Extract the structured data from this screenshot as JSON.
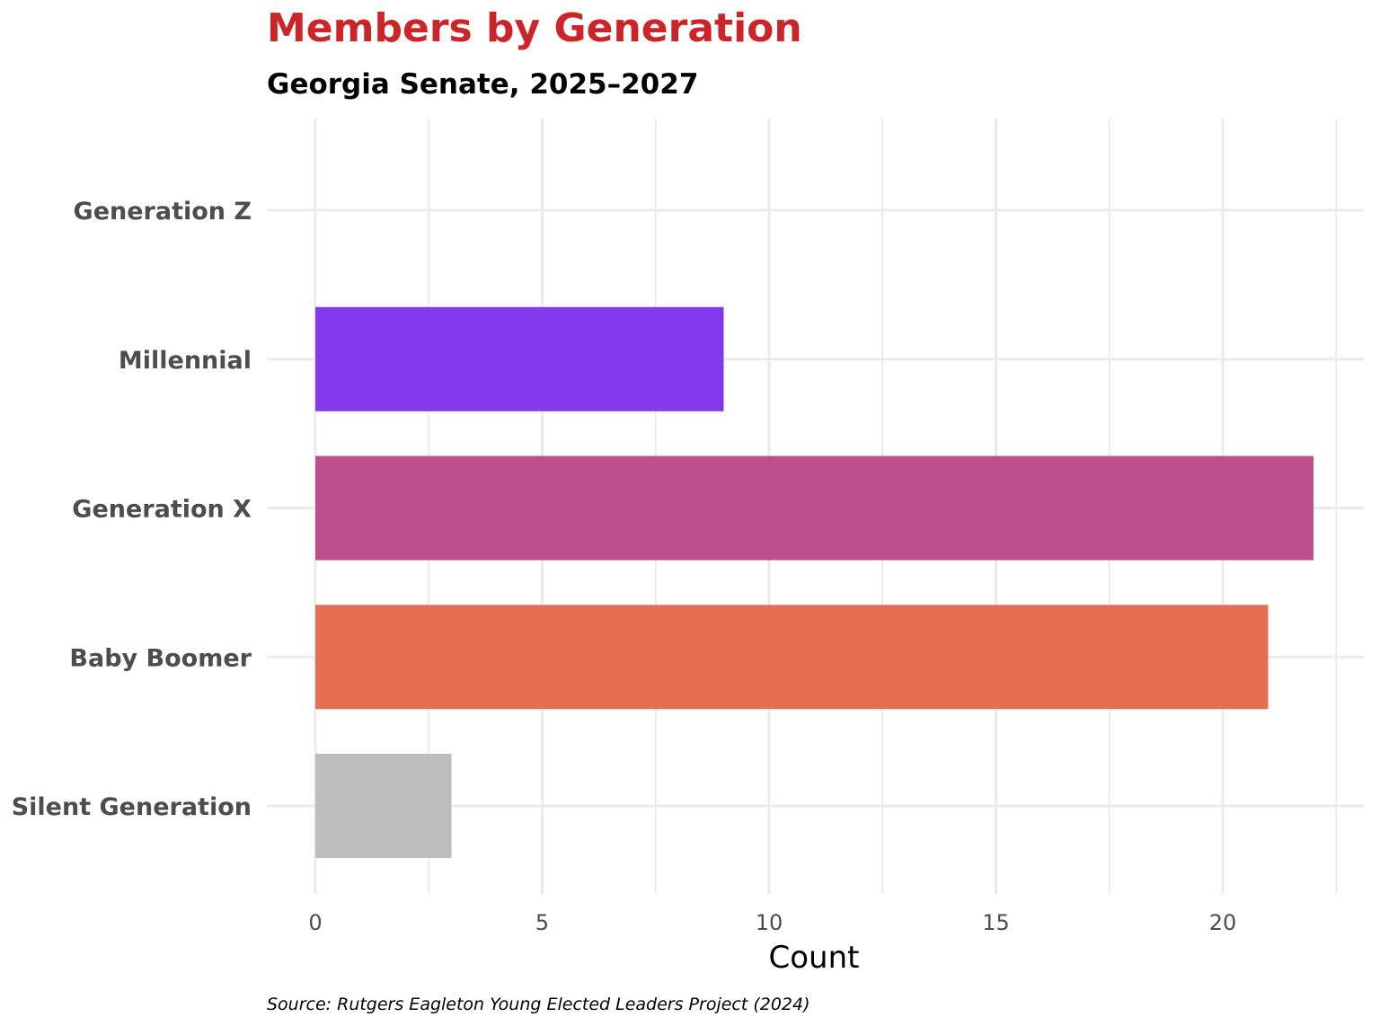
{
  "chart_data": {
    "type": "bar",
    "orientation": "horizontal",
    "title": "Members by Generation",
    "subtitle": "Georgia Senate, 2025–2027",
    "xlabel": "Count",
    "ylabel": "",
    "categories": [
      "Generation Z",
      "Millennial",
      "Generation X",
      "Baby Boomer",
      "Silent Generation"
    ],
    "values": [
      0,
      9,
      22,
      21,
      3
    ],
    "colors": [
      "#8338ec",
      "#8338ec",
      "#bd4f8d",
      "#e66f51",
      "#bdbdbd"
    ],
    "xlim": [
      0,
      22.6
    ],
    "xticks": [
      0,
      5,
      10,
      15,
      20
    ],
    "xtick_labels": [
      "0",
      "5",
      "10",
      "15",
      "20"
    ],
    "grid": true,
    "legend": "none",
    "caption": "Source: Rutgers Eagleton Young Elected Leaders Project (2024)"
  }
}
